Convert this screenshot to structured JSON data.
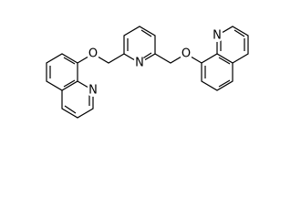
{
  "atoms": [
    {
      "label": "O"
    },
    {
      "label": "N"
    },
    {
      "label": "N"
    },
    {
      "label": "O"
    },
    {
      "label": "N"
    }
  ]
}
